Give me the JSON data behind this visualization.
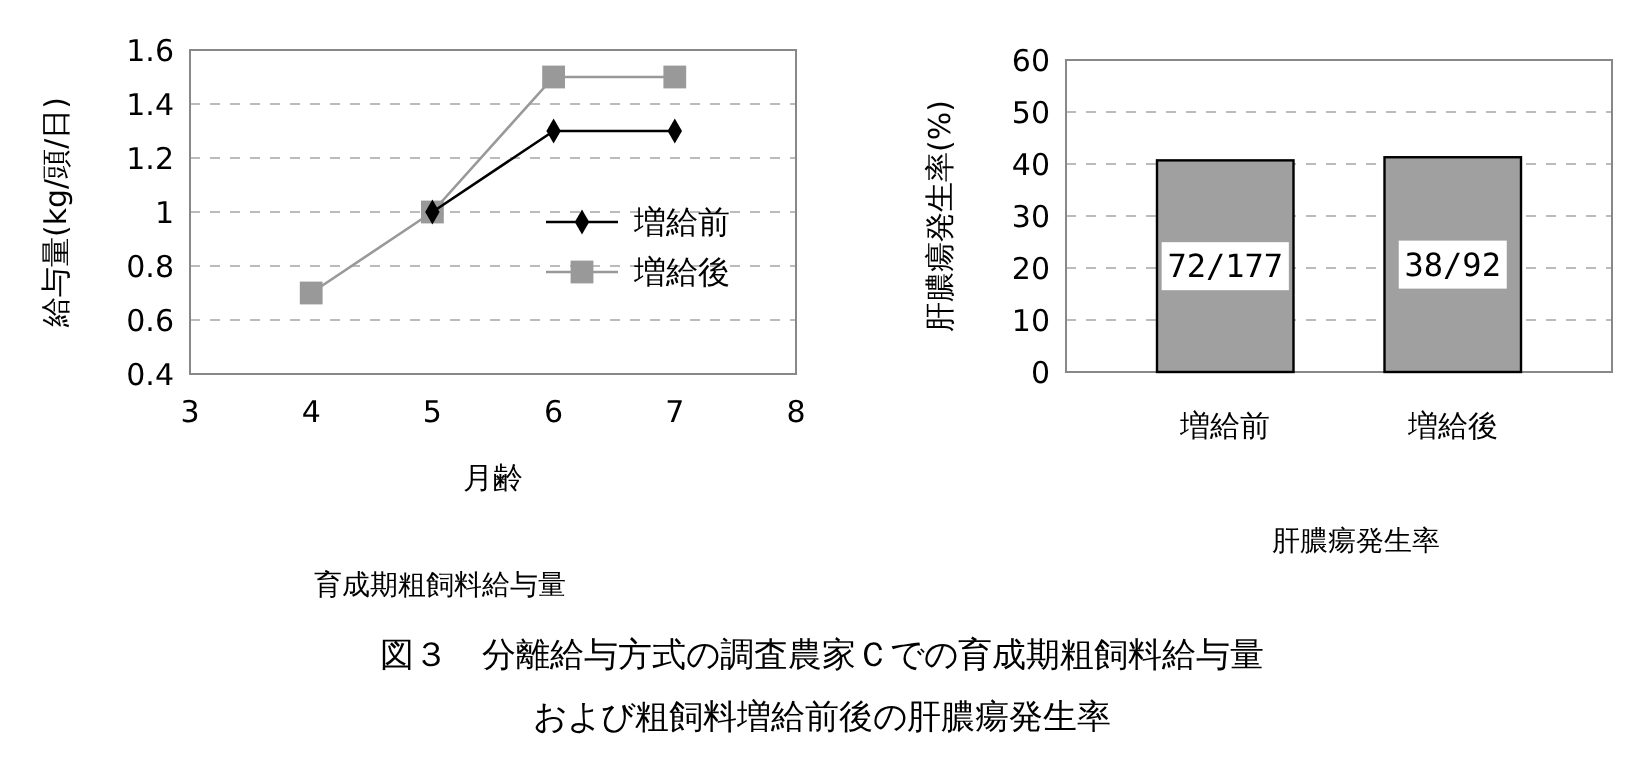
{
  "chart_data": [
    {
      "type": "line",
      "title": "育成期粗飼料給与量",
      "xlabel": "月齢",
      "ylabel": "給与量(kg/頭/日)",
      "x": [
        4,
        5,
        6,
        7
      ],
      "series": [
        {
          "name": "増給後",
          "color": "#999999",
          "marker": "square",
          "values": [
            0.7,
            1.0,
            1.5,
            1.5
          ]
        },
        {
          "name": "増給前",
          "color": "#000000",
          "marker": "diamond",
          "values": [
            null,
            1.0,
            1.3,
            1.3
          ]
        }
      ],
      "xlim": [
        3,
        8
      ],
      "xticks": [
        3,
        4,
        5,
        6,
        7,
        8
      ],
      "ylim": [
        0.4,
        1.6
      ],
      "yticks": [
        0.4,
        0.6,
        0.8,
        1,
        1.2,
        1.4,
        1.6
      ],
      "grid": "y",
      "legend": "right"
    },
    {
      "type": "bar",
      "title": "肝膿瘍発生率",
      "ylabel": "肝膿瘍発生率(%)",
      "categories": [
        "増給前",
        "増給後"
      ],
      "values": [
        40.7,
        41.3
      ],
      "color": "#a0a0a0",
      "value_labels": [
        "72/177",
        "38/92"
      ],
      "ylim": [
        0,
        60
      ],
      "yticks": [
        0,
        10,
        20,
        30,
        40,
        50,
        60
      ],
      "grid": "y",
      "annotations": [
        "図３　分離給与方式の調査農家Ｃでの育成期粗飼料給与量",
        "および粗飼料増給前後の肝膿瘍発生率"
      ]
    }
  ]
}
